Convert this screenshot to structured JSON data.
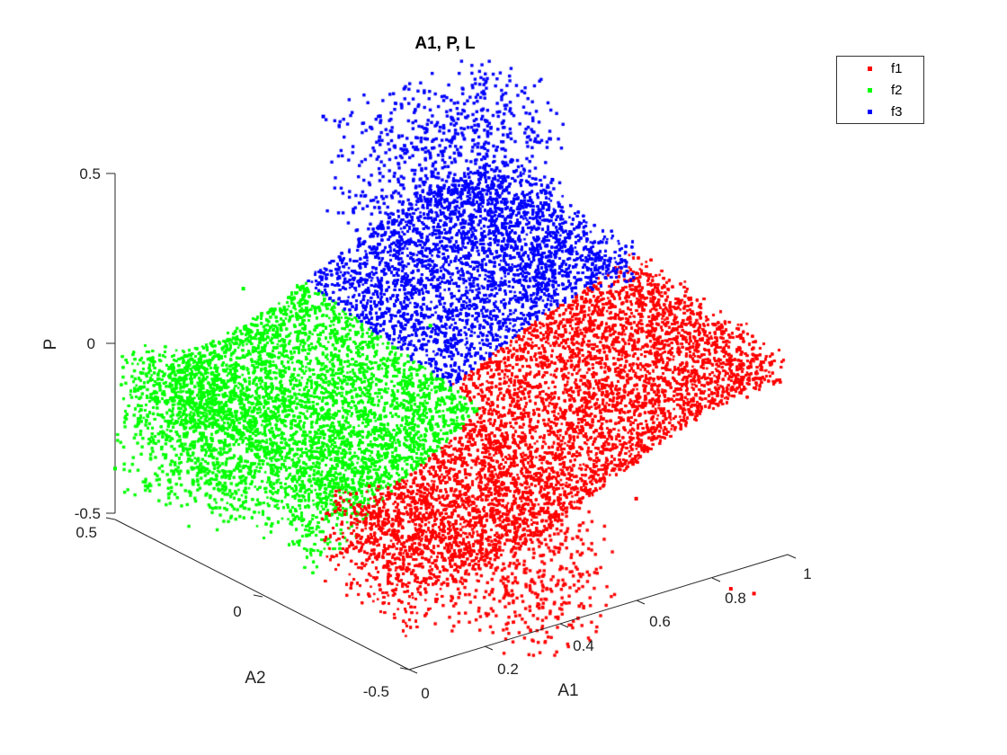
{
  "chart_data": {
    "type": "scatter",
    "title": "A1, P, L",
    "xlabel": "A1",
    "ylabel": "A2",
    "zlabel": "P",
    "xlim": [
      0,
      1
    ],
    "ylim": [
      -0.5,
      0.5
    ],
    "zlim": [
      -0.5,
      0.5
    ],
    "x_ticks": [
      "0",
      "0.2",
      "0.4",
      "0.6",
      "0.8",
      "1"
    ],
    "y_ticks": [
      "-0.5",
      "0",
      "0.5"
    ],
    "z_ticks": [
      "-0.5",
      "0",
      "0.5"
    ],
    "legend_position": "top-right",
    "grid": false,
    "series": [
      {
        "name": "f1",
        "color": "#ff0000",
        "region": "A1 large, A2 low; lower surface, P from about -0.6 to 0"
      },
      {
        "name": "f2",
        "color": "#00ff00",
        "region": "A1 small, A2 high; P from about -0.4 to 0.15"
      },
      {
        "name": "f3",
        "color": "#0000ff",
        "region": "A1 large, A2 high; upper surface, P from 0 to about 0.5"
      }
    ],
    "points": [
      {
        "series": "f1",
        "x": 0.95,
        "y": -0.45,
        "z": -0.62
      },
      {
        "series": "f1",
        "x": 0.85,
        "y": -0.5,
        "z": -0.55
      },
      {
        "series": "f1",
        "x": 1.0,
        "y": -0.3,
        "z": 0.0
      },
      {
        "series": "f1",
        "x": 0.6,
        "y": -0.5,
        "z": -0.2
      },
      {
        "series": "f2",
        "x": 0.0,
        "y": 0.5,
        "z": -0.35
      },
      {
        "series": "f2",
        "x": 0.3,
        "y": 0.45,
        "z": 0.1
      },
      {
        "series": "f2",
        "x": 0.6,
        "y": 0.2,
        "z": 0.0
      },
      {
        "series": "f3",
        "x": 0.55,
        "y": 0.5,
        "z": 0.5
      },
      {
        "series": "f3",
        "x": 1.0,
        "y": 0.3,
        "z": 0.25
      },
      {
        "series": "f3",
        "x": 0.7,
        "y": 0.5,
        "z": 0.45
      }
    ]
  }
}
